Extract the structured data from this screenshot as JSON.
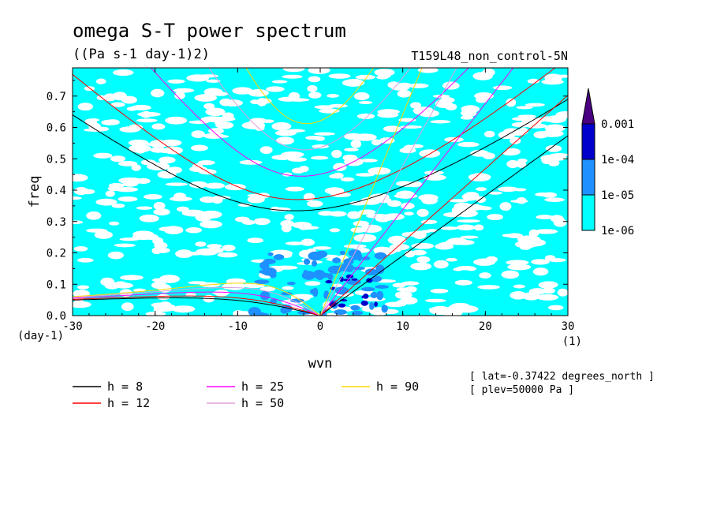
{
  "chart_data": {
    "type": "contour",
    "title": "omega S-T power spectrum",
    "units": "((Pa s-1 day-1)2)",
    "run_label": "T159L48_non_control-5N",
    "xlabel": "wvn",
    "ylabel": "freq",
    "x_unit": "(1)",
    "y_unit": "(day-1)",
    "xlim": [
      -30,
      30
    ],
    "ylim": [
      0.0,
      0.79
    ],
    "xticks": [
      -30,
      -20,
      -10,
      0,
      10,
      20,
      30
    ],
    "yticks": [
      0.0,
      0.1,
      0.2,
      0.3,
      0.4,
      0.5,
      0.6,
      0.7
    ],
    "ytick_labels": [
      "0.0",
      "0.1",
      "0.2",
      "0.3",
      "0.4",
      "0.5",
      "0.6",
      "0.7"
    ],
    "xtick_labels": [
      "-30",
      "-20",
      "-10",
      "0",
      "10",
      "20",
      "30"
    ],
    "colorbar": {
      "levels": [
        "1e-06",
        "1e-05",
        "1e-04",
        "0.001"
      ],
      "colors": [
        "#00ffff",
        "#1e90ff",
        "#0000cd",
        "#4b0082"
      ]
    },
    "dispersion_curves": [
      {
        "label": "h =  8",
        "h": 8,
        "color": "#000000"
      },
      {
        "label": "h = 12",
        "h": 12,
        "color": "#ff0000"
      },
      {
        "label": "h = 25",
        "h": 25,
        "color": "#ff00ff"
      },
      {
        "label": "h = 50",
        "h": 50,
        "color": "#dda0dd"
      },
      {
        "label": "h = 90",
        "h": 90,
        "color": "#ffd700"
      }
    ],
    "annotations": [
      "[ lat=-0.37422 degrees_north ]",
      "[ plev=50000 Pa ]"
    ]
  }
}
